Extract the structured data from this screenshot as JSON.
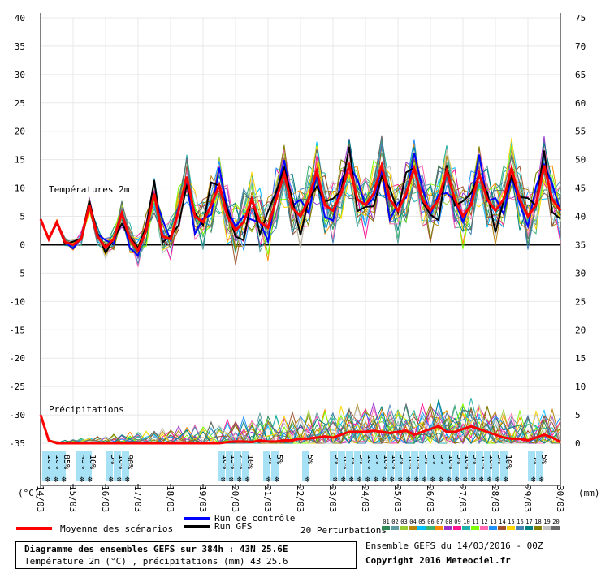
{
  "chart_data": {
    "type": "line",
    "title": "Diagramme des ensembles GEFS sur 384h : 43N 25.6E",
    "subtitle": "Température 2m (°C) , précipitations (mm) 43 25.6",
    "left_axis_ticks": [
      "40",
      "35",
      "30",
      "25",
      "20",
      "15",
      "10",
      "5",
      "0",
      "-5",
      "-10",
      "-15",
      "-20",
      "-25",
      "-30",
      "-35"
    ],
    "right_axis_ticks": [
      "75",
      "70",
      "65",
      "60",
      "55",
      "50",
      "45",
      "40",
      "35",
      "30",
      "25",
      "20",
      "15",
      "10",
      "5",
      "0"
    ],
    "x_labels": [
      "14/03",
      "15/03",
      "16/03",
      "17/03",
      "18/03",
      "19/03",
      "20/03",
      "21/03",
      "22/03",
      "23/03",
      "24/03",
      "25/03",
      "26/03",
      "27/03",
      "28/03",
      "29/03",
      "30/03"
    ],
    "temp_section_label": "Températures 2m",
    "precip_section_label": "Précipitations",
    "left_unit": "(°C)",
    "right_unit": "(mm)",
    "ylim_temp": [
      -35,
      40
    ],
    "ylim_precip_mm": [
      0,
      75
    ],
    "mean_temperature": {
      "name": "Moyenne des scénarios",
      "x_days": [
        0,
        0.25,
        0.5,
        0.75,
        1,
        1.25,
        1.5,
        1.75,
        2,
        2.25,
        2.5,
        2.75,
        3,
        3.25,
        3.5,
        3.75,
        4,
        4.25,
        4.5,
        4.75,
        5,
        5.25,
        5.5,
        5.75,
        6,
        6.25,
        6.5,
        6.75,
        7,
        7.25,
        7.5,
        7.75,
        8,
        8.25,
        8.5,
        8.75,
        9,
        9.25,
        9.5,
        9.75,
        10,
        10.25,
        10.5,
        10.75,
        11,
        11.25,
        11.5,
        11.75,
        12,
        12.25,
        12.5,
        12.75,
        13,
        13.25,
        13.5,
        13.75,
        14,
        14.25,
        14.5,
        14.75,
        15,
        15.25,
        15.5,
        15.75,
        16
      ],
      "values": [
        4.5,
        1,
        4,
        0.5,
        0,
        1,
        7,
        1.5,
        -0.5,
        1,
        5.5,
        1,
        -1,
        2.5,
        9,
        1.5,
        1,
        6,
        12,
        5,
        4,
        7,
        10.5,
        5,
        2.5,
        4,
        8,
        4,
        3,
        8,
        12.5,
        6.5,
        5,
        8,
        13,
        7,
        6,
        9,
        14,
        8,
        7,
        9,
        14,
        8,
        6,
        9,
        13.5,
        8,
        6,
        8,
        13,
        8,
        5,
        7,
        12.5,
        8,
        6,
        8,
        13.5,
        8,
        5,
        7,
        14,
        8,
        6
      ]
    },
    "control_run": {
      "name": "Run de contrôle"
    },
    "gfs_run": {
      "name": "Run GFS"
    },
    "perturbations_label": "20 Perturbations",
    "perturbation_ids": [
      "01",
      "02",
      "03",
      "04",
      "05",
      "06",
      "07",
      "08",
      "09",
      "10",
      "11",
      "12",
      "13",
      "14",
      "15",
      "16",
      "17",
      "18",
      "19",
      "20"
    ],
    "perturbation_colors": [
      "#2e8b57",
      "#5f9ea0",
      "#9acd32",
      "#b8860b",
      "#00bfff",
      "#3cb371",
      "#ff8c00",
      "#9932cc",
      "#ff1493",
      "#20b2aa",
      "#7fff00",
      "#ff69b4",
      "#1e90ff",
      "#a0522d",
      "#ffd700",
      "#4682b4",
      "#008080",
      "#808000",
      "#c0c0c0",
      "#696969"
    ],
    "snow_bubbles": [
      {
        "day": 0.15,
        "labels": [
          "10%",
          "10%",
          "85%"
        ]
      },
      {
        "day": 1.2,
        "labels": [
          "45%",
          "10%"
        ]
      },
      {
        "day": 2.1,
        "labels": [
          "5%",
          "10%",
          "90%"
        ]
      },
      {
        "day": 5.55,
        "labels": [
          "10%",
          "15%",
          "25%",
          "10%"
        ]
      },
      {
        "day": 6.95,
        "labels": [
          "5%",
          "5%"
        ]
      },
      {
        "day": 8.15,
        "labels": [
          "5%"
        ]
      },
      {
        "day": 9,
        "labels": [
          "5%",
          "10%",
          "5%",
          "5%",
          "10%",
          "5%",
          "10%",
          "10%",
          "5%",
          "10%",
          "10%",
          "5%",
          "5%",
          "5%",
          "10%",
          "5%",
          "10%",
          "5%",
          "10%",
          "10%",
          "5%",
          "10%"
        ]
      },
      {
        "day": 15.1,
        "labels": [
          "5%",
          "5%"
        ]
      }
    ],
    "precip_mean_mm": [
      5,
      0.5,
      0,
      0,
      0,
      0,
      0,
      0,
      0,
      0,
      0,
      0,
      0,
      0,
      0,
      0,
      0,
      0,
      0,
      0,
      0,
      0,
      0,
      0.2,
      0.3,
      0.3,
      0.2,
      0.5,
      0.3,
      0.3,
      0.5,
      0.5,
      0.8,
      0.8,
      1,
      1.2,
      1,
      1.5,
      2,
      2,
      2,
      2.2,
      2,
      1.8,
      2,
      2.2,
      1.5,
      2,
      2.5,
      3,
      2,
      2,
      2.5,
      3,
      2.5,
      2,
      1.5,
      1,
      0.8,
      0.8,
      0.5,
      1,
      1.5,
      1,
      0.2
    ]
  },
  "colors": {
    "mean": "#ff0000",
    "control": "#0000ff",
    "gfs": "#000000",
    "axis": "#000000",
    "grid": "#e8e8e8",
    "snow": "#a6e1f5"
  },
  "footer": {
    "title_line1": "Diagramme des ensembles GEFS sur 384h : 43N 25.6E",
    "title_line2": "Température 2m (°C) , précipitations (mm) 43 25.6",
    "legend_mean": "Moyenne des scénarios",
    "legend_control": "Run de contrôle",
    "legend_gfs": "Run GFS",
    "legend_perturb": "20 Perturbations",
    "run_info": "Ensemble GEFS du 14/03/2016 - 00Z",
    "copyright": "Copyright 2016 Meteociel.fr"
  }
}
